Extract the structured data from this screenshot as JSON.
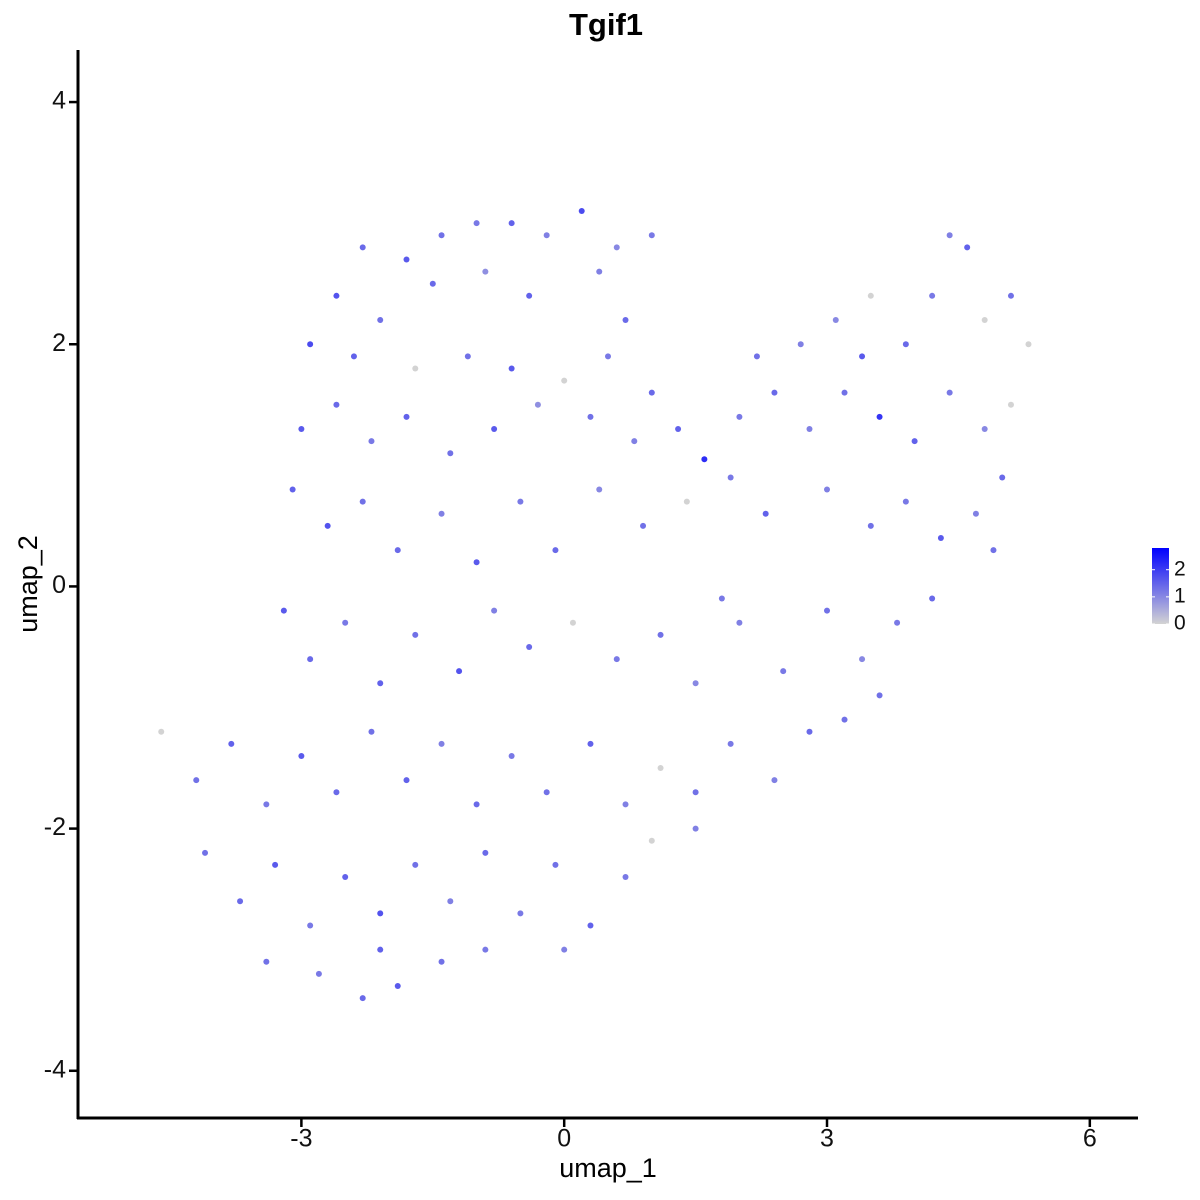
{
  "chart_data": {
    "type": "scatter",
    "title": "Tgif1",
    "x_label": "umap_1",
    "y_label": "umap_2",
    "x": [
      -2.3,
      -1.8,
      -1.4,
      -1.0,
      -0.6,
      -0.2,
      0.2,
      0.6,
      1.0,
      -2.6,
      -2.1,
      -1.5,
      -0.9,
      -0.4,
      0.4,
      0.7,
      -2.9,
      -2.4,
      -1.7,
      -1.1,
      -0.6,
      0.0,
      0.5,
      1.0,
      -3.0,
      -2.6,
      -2.2,
      -1.8,
      -1.3,
      -0.8,
      -0.3,
      0.3,
      0.8,
      1.3,
      1.6,
      2.0,
      2.4,
      2.8,
      3.2,
      3.6,
      4.0,
      4.4,
      4.8,
      5.1,
      2.2,
      2.7,
      3.1,
      3.5,
      3.9,
      4.2,
      4.6,
      4.8,
      5.1,
      5.3,
      4.4,
      3.4,
      -3.1,
      -2.7,
      -2.3,
      -1.9,
      -1.4,
      -1.0,
      -0.5,
      -0.1,
      0.4,
      0.9,
      1.4,
      1.9,
      2.3,
      3.0,
      3.5,
      3.9,
      4.3,
      4.7,
      5.0,
      4.9,
      -3.2,
      -2.9,
      -2.5,
      -2.1,
      -1.7,
      -1.2,
      -0.8,
      -0.4,
      0.1,
      0.6,
      1.1,
      1.5,
      2.0,
      2.5,
      3.0,
      3.4,
      3.8,
      4.2,
      3.6,
      1.8,
      -4.6,
      -4.2,
      -3.8,
      -3.4,
      -3.0,
      -2.6,
      -2.2,
      -1.8,
      -1.4,
      -1.0,
      -0.6,
      -0.2,
      0.3,
      0.7,
      1.1,
      1.5,
      1.9,
      2.4,
      2.8,
      3.2,
      -4.1,
      -3.7,
      -3.3,
      -2.9,
      -2.5,
      -2.1,
      -1.7,
      -1.3,
      -0.9,
      -0.5,
      -0.1,
      0.3,
      0.7,
      1.0,
      1.5,
      -3.4,
      -2.8,
      -2.3,
      -1.9,
      -1.4,
      -2.1,
      -0.9,
      0.0
    ],
    "y": [
      2.8,
      2.7,
      2.9,
      3.0,
      3.0,
      2.9,
      3.1,
      2.8,
      2.9,
      2.4,
      2.2,
      2.5,
      2.6,
      2.4,
      2.6,
      2.2,
      2.0,
      1.9,
      1.8,
      1.9,
      1.8,
      1.7,
      1.9,
      1.6,
      1.3,
      1.5,
      1.2,
      1.4,
      1.1,
      1.3,
      1.5,
      1.4,
      1.2,
      1.3,
      1.05,
      1.4,
      1.6,
      1.3,
      1.6,
      1.4,
      1.2,
      1.6,
      1.3,
      1.5,
      1.9,
      2.0,
      2.2,
      2.4,
      2.0,
      2.4,
      2.8,
      2.2,
      2.4,
      2.0,
      2.9,
      1.9,
      0.8,
      0.5,
      0.7,
      0.3,
      0.6,
      0.2,
      0.7,
      0.3,
      0.8,
      0.5,
      0.7,
      0.9,
      0.6,
      0.8,
      0.5,
      0.7,
      0.4,
      0.6,
      0.9,
      0.3,
      -0.2,
      -0.6,
      -0.3,
      -0.8,
      -0.4,
      -0.7,
      -0.2,
      -0.5,
      -0.3,
      -0.6,
      -0.4,
      -0.8,
      -0.3,
      -0.7,
      -0.2,
      -0.6,
      -0.3,
      -0.1,
      -0.9,
      -0.1,
      -1.2,
      -1.6,
      -1.3,
      -1.8,
      -1.4,
      -1.7,
      -1.2,
      -1.6,
      -1.3,
      -1.8,
      -1.4,
      -1.7,
      -1.3,
      -1.8,
      -1.5,
      -1.7,
      -1.3,
      -1.6,
      -1.2,
      -1.1,
      -2.2,
      -2.6,
      -2.3,
      -2.8,
      -2.4,
      -2.7,
      -2.3,
      -2.6,
      -2.2,
      -2.7,
      -2.3,
      -2.8,
      -2.4,
      -2.1,
      -2.0,
      -3.1,
      -3.2,
      -3.4,
      -3.3,
      -3.1,
      -3.0,
      -3.0,
      -3.0
    ],
    "values": [
      1.4,
      1.6,
      1.3,
      1.2,
      1.5,
      1.1,
      1.8,
      1.0,
      1.2,
      1.7,
      1.3,
      1.4,
      0.9,
      1.5,
      1.1,
      1.4,
      1.8,
      1.5,
      0,
      1.3,
      1.6,
      0,
      1.2,
      1.4,
      1.6,
      1.4,
      1.2,
      1.5,
      1.3,
      1.6,
      0.9,
      1.3,
      1.1,
      1.5,
      2.2,
      1.2,
      1.4,
      1.1,
      1.3,
      2.1,
      1.5,
      1.2,
      1.0,
      0,
      1.3,
      1.1,
      1.0,
      0,
      1.4,
      1.2,
      1.5,
      0,
      1.3,
      0,
      1.1,
      1.6,
      1.5,
      1.7,
      1.3,
      1.4,
      1.1,
      1.6,
      1.2,
      1.4,
      1.0,
      1.3,
      0,
      1.2,
      1.5,
      1.1,
      1.3,
      1.2,
      1.6,
      1.1,
      1.4,
      1.3,
      1.6,
      1.4,
      1.2,
      1.5,
      1.3,
      1.7,
      1.1,
      1.4,
      0,
      1.2,
      1.3,
      1.0,
      1.1,
      1.2,
      1.3,
      1.0,
      1.2,
      1.4,
      1.3,
      1.2,
      0,
      1.3,
      1.5,
      1.2,
      1.6,
      1.4,
      1.3,
      1.5,
      1.1,
      1.4,
      1.2,
      1.3,
      1.5,
      1.1,
      0,
      1.3,
      1.2,
      1.1,
      1.4,
      1.3,
      1.3,
      1.4,
      1.6,
      1.2,
      1.5,
      1.7,
      1.3,
      1.1,
      1.4,
      1.2,
      1.3,
      1.5,
      1.2,
      0,
      1.1,
      1.3,
      1.2,
      1.4,
      1.6,
      1.3,
      1.5,
      1.2,
      1.1
    ],
    "xlim": [
      -5.55,
      6.55
    ],
    "ylim": [
      -4.39,
      4.43
    ],
    "xticks": [
      -3,
      0,
      3,
      6
    ],
    "yticks": [
      -4,
      -2,
      0,
      2,
      4
    ],
    "color_low": "#d3d3d3",
    "color_high": "#0000ff",
    "colorbar_lim": [
      0,
      2.8
    ],
    "colorbar_ticks": [
      0,
      1,
      2
    ]
  }
}
